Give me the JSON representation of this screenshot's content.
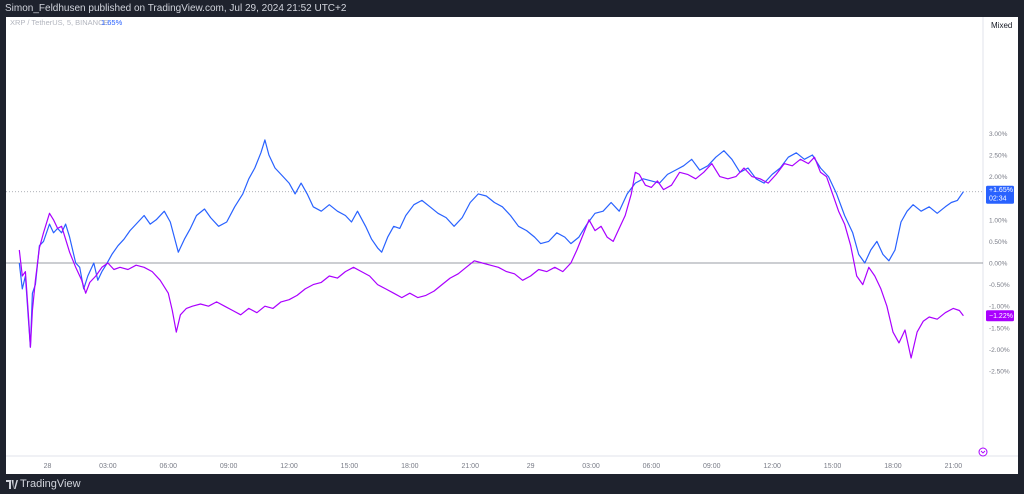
{
  "header": {
    "published_text": "Simon_Feldhusen published on TradingView.com, Jul 29, 2024 21:52 UTC+2"
  },
  "footer": {
    "brand_label": "TradingView"
  },
  "legend": {
    "symbol_text": "XRP / TetherUS, 5, BINANCE",
    "change_text": "1.65%"
  },
  "scale_mode_button": "Mixed",
  "price_labels": {
    "blue_change": "+1.65%",
    "blue_countdown": "02:34",
    "purple_change": "−1.22%"
  },
  "colors": {
    "blue_series": "#2962ff",
    "purple_series": "#aa00ff",
    "legend_text": "#b2b5be",
    "legend_change": "#2962ff"
  },
  "chart_data": {
    "type": "line",
    "x_ticks": [
      "28",
      "03:00",
      "06:00",
      "09:00",
      "12:00",
      "15:00",
      "18:00",
      "21:00",
      "29",
      "03:00",
      "06:00",
      "09:00",
      "12:00",
      "15:00",
      "18:00",
      "21:00"
    ],
    "y_ticks": [
      "3.00%",
      "2.50%",
      "2.00%",
      "1.50%",
      "1.00%",
      "0.50%",
      "0.00%",
      "-0.50%",
      "-1.00%",
      "-1.50%",
      "-2.00%",
      "-2.50%"
    ],
    "ylim": [
      -2.6,
      3.1
    ],
    "x_range_hours": [
      -1.4,
      45.8
    ],
    "grid": false,
    "series": [
      {
        "color": "#2962ff",
        "last_value": 1.65,
        "points": [
          [
            -1.4,
            0
          ],
          [
            -1.25,
            -0.6
          ],
          [
            -1.1,
            -0.3
          ],
          [
            -0.95,
            -1.3
          ],
          [
            -0.85,
            -1.95
          ],
          [
            -0.75,
            -0.7
          ],
          [
            -0.6,
            -0.5
          ],
          [
            -0.4,
            0.4
          ],
          [
            -0.2,
            0.5
          ],
          [
            0.1,
            0.9
          ],
          [
            0.3,
            0.7
          ],
          [
            0.5,
            0.8
          ],
          [
            0.7,
            0.7
          ],
          [
            0.9,
            0.9
          ],
          [
            1.1,
            0.6
          ],
          [
            1.4,
            0.0
          ],
          [
            1.6,
            -0.1
          ],
          [
            1.8,
            -0.6
          ],
          [
            2.0,
            -0.3
          ],
          [
            2.3,
            0.0
          ],
          [
            2.5,
            -0.4
          ],
          [
            2.7,
            -0.2
          ],
          [
            2.9,
            -0.05
          ],
          [
            3.2,
            0.2
          ],
          [
            3.5,
            0.4
          ],
          [
            3.8,
            0.55
          ],
          [
            4.1,
            0.75
          ],
          [
            4.4,
            0.9
          ],
          [
            4.8,
            1.1
          ],
          [
            5.1,
            0.9
          ],
          [
            5.4,
            1.0
          ],
          [
            5.8,
            1.2
          ],
          [
            6.1,
            0.95
          ],
          [
            6.3,
            0.6
          ],
          [
            6.5,
            0.25
          ],
          [
            6.8,
            0.55
          ],
          [
            7.1,
            0.8
          ],
          [
            7.4,
            1.1
          ],
          [
            7.8,
            1.25
          ],
          [
            8.1,
            1.05
          ],
          [
            8.5,
            0.85
          ],
          [
            8.9,
            0.95
          ],
          [
            9.3,
            1.3
          ],
          [
            9.7,
            1.6
          ],
          [
            10.0,
            1.95
          ],
          [
            10.3,
            2.2
          ],
          [
            10.6,
            2.55
          ],
          [
            10.8,
            2.85
          ],
          [
            11.0,
            2.5
          ],
          [
            11.3,
            2.2
          ],
          [
            11.6,
            2.05
          ],
          [
            12.0,
            1.85
          ],
          [
            12.3,
            1.6
          ],
          [
            12.6,
            1.85
          ],
          [
            12.9,
            1.6
          ],
          [
            13.2,
            1.3
          ],
          [
            13.6,
            1.2
          ],
          [
            14.0,
            1.35
          ],
          [
            14.4,
            1.2
          ],
          [
            14.8,
            1.1
          ],
          [
            15.1,
            0.95
          ],
          [
            15.4,
            1.2
          ],
          [
            15.8,
            0.85
          ],
          [
            16.1,
            0.55
          ],
          [
            16.4,
            0.35
          ],
          [
            16.6,
            0.25
          ],
          [
            16.9,
            0.6
          ],
          [
            17.2,
            0.85
          ],
          [
            17.5,
            0.8
          ],
          [
            17.8,
            1.1
          ],
          [
            18.2,
            1.35
          ],
          [
            18.6,
            1.45
          ],
          [
            19.0,
            1.3
          ],
          [
            19.4,
            1.15
          ],
          [
            19.8,
            1.05
          ],
          [
            20.2,
            0.85
          ],
          [
            20.6,
            1.05
          ],
          [
            21.0,
            1.4
          ],
          [
            21.4,
            1.6
          ],
          [
            21.8,
            1.55
          ],
          [
            22.2,
            1.4
          ],
          [
            22.6,
            1.3
          ],
          [
            23.0,
            1.1
          ],
          [
            23.4,
            0.85
          ],
          [
            23.8,
            0.75
          ],
          [
            24.2,
            0.6
          ],
          [
            24.5,
            0.45
          ],
          [
            24.9,
            0.5
          ],
          [
            25.3,
            0.7
          ],
          [
            25.7,
            0.6
          ],
          [
            26.0,
            0.45
          ],
          [
            26.4,
            0.6
          ],
          [
            26.8,
            0.9
          ],
          [
            27.2,
            1.15
          ],
          [
            27.6,
            1.2
          ],
          [
            28.0,
            1.4
          ],
          [
            28.4,
            1.2
          ],
          [
            28.8,
            1.6
          ],
          [
            29.2,
            1.85
          ],
          [
            29.6,
            1.95
          ],
          [
            30.0,
            1.9
          ],
          [
            30.4,
            1.85
          ],
          [
            30.8,
            2.05
          ],
          [
            31.2,
            2.15
          ],
          [
            31.6,
            2.25
          ],
          [
            32.0,
            2.4
          ],
          [
            32.4,
            2.15
          ],
          [
            32.8,
            2.25
          ],
          [
            33.2,
            2.45
          ],
          [
            33.6,
            2.6
          ],
          [
            34.0,
            2.4
          ],
          [
            34.4,
            2.1
          ],
          [
            34.8,
            2.2
          ],
          [
            35.2,
            1.95
          ],
          [
            35.6,
            1.85
          ],
          [
            36.0,
            2.05
          ],
          [
            36.4,
            2.2
          ],
          [
            36.8,
            2.45
          ],
          [
            37.2,
            2.55
          ],
          [
            37.6,
            2.4
          ],
          [
            38.0,
            2.5
          ],
          [
            38.4,
            2.2
          ],
          [
            38.8,
            2.0
          ],
          [
            39.2,
            1.6
          ],
          [
            39.6,
            1.1
          ],
          [
            40.0,
            0.7
          ],
          [
            40.3,
            0.2
          ],
          [
            40.6,
            0.0
          ],
          [
            40.9,
            0.3
          ],
          [
            41.2,
            0.5
          ],
          [
            41.5,
            0.2
          ],
          [
            41.8,
            0.05
          ],
          [
            42.1,
            0.3
          ],
          [
            42.4,
            0.95
          ],
          [
            42.7,
            1.2
          ],
          [
            43.0,
            1.35
          ],
          [
            43.4,
            1.2
          ],
          [
            43.8,
            1.3
          ],
          [
            44.2,
            1.15
          ],
          [
            44.6,
            1.3
          ],
          [
            44.9,
            1.4
          ],
          [
            45.2,
            1.45
          ],
          [
            45.5,
            1.65
          ]
        ]
      },
      {
        "color": "#aa00ff",
        "last_value": -1.22,
        "points": [
          [
            -1.4,
            0.3
          ],
          [
            -1.25,
            -0.3
          ],
          [
            -1.1,
            -0.2
          ],
          [
            -0.95,
            -1.2
          ],
          [
            -0.85,
            -1.95
          ],
          [
            -0.75,
            -1.1
          ],
          [
            -0.6,
            -0.4
          ],
          [
            -0.4,
            0.35
          ],
          [
            -0.2,
            0.7
          ],
          [
            0.1,
            1.15
          ],
          [
            0.3,
            1.0
          ],
          [
            0.5,
            0.8
          ],
          [
            0.7,
            0.85
          ],
          [
            0.9,
            0.55
          ],
          [
            1.1,
            0.25
          ],
          [
            1.4,
            -0.1
          ],
          [
            1.7,
            -0.4
          ],
          [
            1.9,
            -0.7
          ],
          [
            2.1,
            -0.45
          ],
          [
            2.4,
            -0.3
          ],
          [
            2.7,
            -0.1
          ],
          [
            3.0,
            0.0
          ],
          [
            3.3,
            -0.15
          ],
          [
            3.6,
            -0.1
          ],
          [
            4.0,
            -0.15
          ],
          [
            4.4,
            -0.05
          ],
          [
            4.8,
            -0.1
          ],
          [
            5.2,
            -0.2
          ],
          [
            5.6,
            -0.4
          ],
          [
            6.0,
            -0.7
          ],
          [
            6.2,
            -1.1
          ],
          [
            6.4,
            -1.6
          ],
          [
            6.6,
            -1.2
          ],
          [
            6.9,
            -1.05
          ],
          [
            7.2,
            -1.0
          ],
          [
            7.6,
            -0.95
          ],
          [
            8.0,
            -1.0
          ],
          [
            8.4,
            -0.9
          ],
          [
            8.8,
            -1.0
          ],
          [
            9.2,
            -1.1
          ],
          [
            9.6,
            -1.2
          ],
          [
            10.0,
            -1.05
          ],
          [
            10.4,
            -1.15
          ],
          [
            10.8,
            -1.0
          ],
          [
            11.2,
            -1.05
          ],
          [
            11.6,
            -0.9
          ],
          [
            12.0,
            -0.85
          ],
          [
            12.4,
            -0.75
          ],
          [
            12.8,
            -0.6
          ],
          [
            13.2,
            -0.5
          ],
          [
            13.6,
            -0.45
          ],
          [
            14.0,
            -0.3
          ],
          [
            14.4,
            -0.35
          ],
          [
            14.8,
            -0.2
          ],
          [
            15.2,
            -0.1
          ],
          [
            15.6,
            -0.2
          ],
          [
            16.0,
            -0.3
          ],
          [
            16.4,
            -0.5
          ],
          [
            16.8,
            -0.6
          ],
          [
            17.2,
            -0.7
          ],
          [
            17.6,
            -0.8
          ],
          [
            18.0,
            -0.7
          ],
          [
            18.4,
            -0.8
          ],
          [
            18.8,
            -0.75
          ],
          [
            19.2,
            -0.65
          ],
          [
            19.6,
            -0.5
          ],
          [
            20.0,
            -0.35
          ],
          [
            20.4,
            -0.25
          ],
          [
            20.8,
            -0.1
          ],
          [
            21.2,
            0.05
          ],
          [
            21.6,
            0.0
          ],
          [
            22.0,
            -0.05
          ],
          [
            22.4,
            -0.1
          ],
          [
            22.8,
            -0.2
          ],
          [
            23.2,
            -0.25
          ],
          [
            23.6,
            -0.4
          ],
          [
            24.0,
            -0.3
          ],
          [
            24.4,
            -0.15
          ],
          [
            24.8,
            -0.2
          ],
          [
            25.2,
            -0.1
          ],
          [
            25.6,
            -0.2
          ],
          [
            26.0,
            0.0
          ],
          [
            26.3,
            0.3
          ],
          [
            26.6,
            0.65
          ],
          [
            26.9,
            1.0
          ],
          [
            27.2,
            0.75
          ],
          [
            27.5,
            0.85
          ],
          [
            27.8,
            0.6
          ],
          [
            28.1,
            0.5
          ],
          [
            28.4,
            0.8
          ],
          [
            28.7,
            1.1
          ],
          [
            29.0,
            1.6
          ],
          [
            29.2,
            2.1
          ],
          [
            29.4,
            2.05
          ],
          [
            29.7,
            1.8
          ],
          [
            30.0,
            1.75
          ],
          [
            30.3,
            1.9
          ],
          [
            30.6,
            1.7
          ],
          [
            31.0,
            1.8
          ],
          [
            31.4,
            2.1
          ],
          [
            31.8,
            2.05
          ],
          [
            32.2,
            1.95
          ],
          [
            32.6,
            2.1
          ],
          [
            33.0,
            2.3
          ],
          [
            33.4,
            2.0
          ],
          [
            33.8,
            1.95
          ],
          [
            34.2,
            2.0
          ],
          [
            34.6,
            2.2
          ],
          [
            35.0,
            2.0
          ],
          [
            35.4,
            1.95
          ],
          [
            35.8,
            1.85
          ],
          [
            36.2,
            2.05
          ],
          [
            36.6,
            2.3
          ],
          [
            37.0,
            2.25
          ],
          [
            37.4,
            2.4
          ],
          [
            37.8,
            2.3
          ],
          [
            38.1,
            2.45
          ],
          [
            38.4,
            2.1
          ],
          [
            38.7,
            2.0
          ],
          [
            39.0,
            1.6
          ],
          [
            39.3,
            1.2
          ],
          [
            39.6,
            0.9
          ],
          [
            39.9,
            0.4
          ],
          [
            40.2,
            -0.3
          ],
          [
            40.5,
            -0.5
          ],
          [
            40.8,
            -0.1
          ],
          [
            41.1,
            -0.3
          ],
          [
            41.4,
            -0.6
          ],
          [
            41.7,
            -1.0
          ],
          [
            42.0,
            -1.6
          ],
          [
            42.3,
            -1.85
          ],
          [
            42.6,
            -1.55
          ],
          [
            42.9,
            -2.2
          ],
          [
            43.2,
            -1.6
          ],
          [
            43.5,
            -1.35
          ],
          [
            43.8,
            -1.25
          ],
          [
            44.2,
            -1.3
          ],
          [
            44.6,
            -1.15
          ],
          [
            45.0,
            -1.05
          ],
          [
            45.3,
            -1.1
          ],
          [
            45.5,
            -1.22
          ]
        ]
      }
    ]
  }
}
